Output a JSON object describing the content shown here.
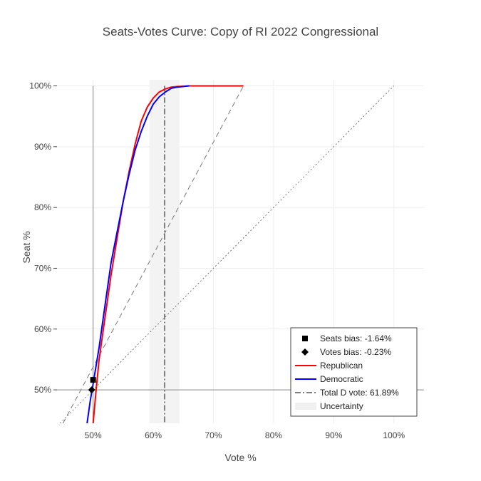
{
  "chart_data": {
    "type": "line",
    "title": "Seats-Votes Curve: Copy of RI 2022 Congressional",
    "xlabel": "Vote %",
    "ylabel": "Seat %",
    "xlim": [
      0.44,
      1.05
    ],
    "ylim": [
      0.445,
      1.01
    ],
    "x_ticks": [
      {
        "value": 0.5,
        "label": "50%"
      },
      {
        "value": 0.6,
        "label": "60%"
      },
      {
        "value": 0.7,
        "label": "70%"
      },
      {
        "value": 0.8,
        "label": "80%"
      },
      {
        "value": 0.9,
        "label": "90%"
      },
      {
        "value": 1.0,
        "label": "100%"
      }
    ],
    "y_ticks": [
      {
        "value": 0.5,
        "label": "50%"
      },
      {
        "value": 0.6,
        "label": "60%"
      },
      {
        "value": 0.7,
        "label": "70%"
      },
      {
        "value": 0.8,
        "label": "80%"
      },
      {
        "value": 0.9,
        "label": "90%"
      },
      {
        "value": 1.0,
        "label": "100%"
      }
    ],
    "grid": true,
    "legend_position": "bottom-right",
    "series": [
      {
        "name": "Republican",
        "color": "#ff0000",
        "x": [
          0.5,
          0.505,
          0.51,
          0.52,
          0.53,
          0.54,
          0.55,
          0.56,
          0.57,
          0.58,
          0.59,
          0.6,
          0.61,
          0.62,
          0.63,
          0.64,
          0.66,
          0.7,
          0.75
        ],
        "y": [
          0.445,
          0.5,
          0.55,
          0.62,
          0.69,
          0.75,
          0.81,
          0.86,
          0.905,
          0.942,
          0.965,
          0.98,
          0.99,
          0.995,
          0.998,
          0.999,
          1.0,
          1.0,
          1.0
        ]
      },
      {
        "name": "Democratic",
        "color": "#0000ff",
        "x": [
          0.49,
          0.495,
          0.5,
          0.51,
          0.52,
          0.53,
          0.54,
          0.55,
          0.56,
          0.57,
          0.58,
          0.59,
          0.6,
          0.61,
          0.62,
          0.63,
          0.64,
          0.65,
          0.66
        ],
        "y": [
          0.445,
          0.48,
          0.51,
          0.57,
          0.64,
          0.71,
          0.76,
          0.81,
          0.855,
          0.895,
          0.925,
          0.95,
          0.97,
          0.982,
          0.99,
          0.996,
          0.998,
          0.999,
          1.0
        ]
      }
    ],
    "reference_lines": [
      {
        "style": "dash",
        "x": [
          0.45,
          0.75
        ],
        "y": [
          0.445,
          1.0
        ]
      },
      {
        "style": "dot",
        "x": [
          0.445,
          1.0
        ],
        "y": [
          0.445,
          1.0
        ]
      }
    ],
    "axis_lines": {
      "x": 0.5,
      "y": 0.5
    },
    "total_d_vote": {
      "x": 0.6189,
      "label": "Total D vote: 61.89%"
    },
    "uncertainty": {
      "x_range": [
        0.5935,
        0.6435
      ],
      "label": "Uncertainty"
    },
    "markers": [
      {
        "name": "Seats bias",
        "label": "Seats bias: -1.64%",
        "shape": "square",
        "x": 0.5,
        "y": 0.5164
      },
      {
        "name": "Votes bias",
        "label": "Votes bias: -0.23%",
        "shape": "diamond",
        "x": 0.4977,
        "y": 0.5
      }
    ],
    "legend": [
      {
        "label": "Seats bias: -1.64%",
        "symbol": "square"
      },
      {
        "label": "Votes bias: -0.23%",
        "symbol": "diamond"
      },
      {
        "label": "Republican",
        "symbol": "line",
        "color": "#ff0000"
      },
      {
        "label": "Democratic",
        "symbol": "line",
        "color": "#0000ff"
      },
      {
        "label": "Total D vote: 61.89%",
        "symbol": "dashdot"
      },
      {
        "label": "Uncertainty",
        "symbol": "band"
      }
    ]
  }
}
